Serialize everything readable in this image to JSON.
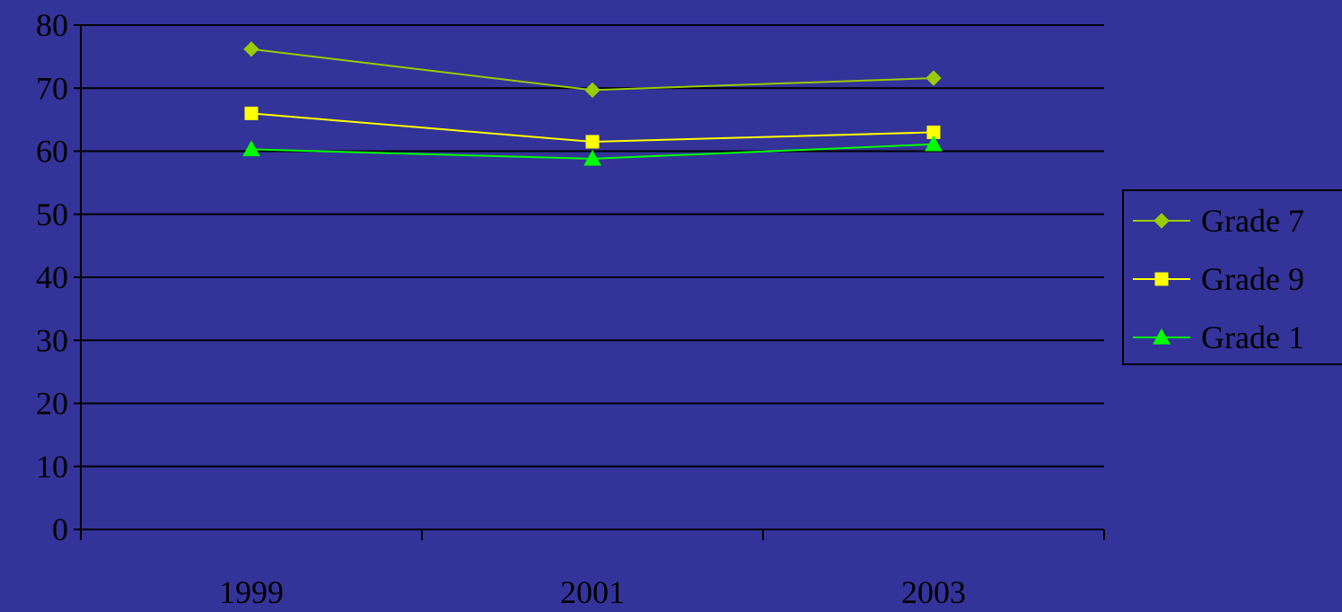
{
  "chart_data": {
    "type": "line",
    "title": "",
    "xlabel": "",
    "ylabel": "",
    "categories": [
      "1999",
      "2001",
      "2003"
    ],
    "ylim": [
      0,
      80
    ],
    "yticks": [
      0,
      10,
      20,
      30,
      40,
      50,
      60,
      70,
      80
    ],
    "grid": true,
    "legend_position": "right",
    "series": [
      {
        "name": "Grade 7",
        "values": [
          76.2,
          69.7,
          71.6
        ],
        "color": "#99CC00",
        "marker": "diamond"
      },
      {
        "name": "Grade 9",
        "values": [
          66.0,
          61.5,
          63.0
        ],
        "color": "#FFFF00",
        "marker": "square"
      },
      {
        "name": "Grade 1",
        "values": [
          60.3,
          58.8,
          61.1
        ],
        "color": "#00FF00",
        "marker": "triangle"
      }
    ]
  },
  "colors": {
    "background": "#333399",
    "axis": "#000000",
    "text": "#000000"
  }
}
